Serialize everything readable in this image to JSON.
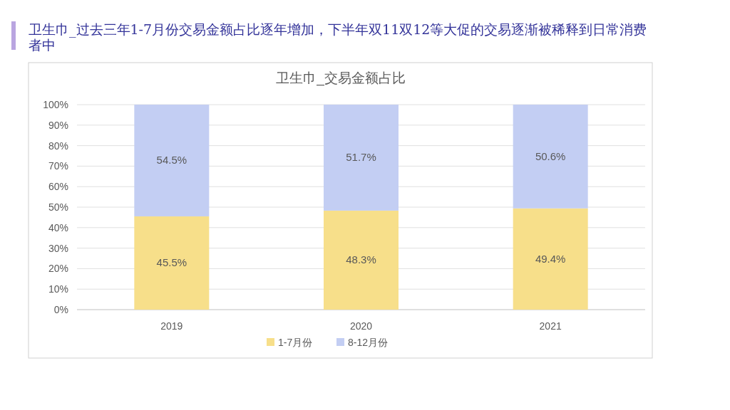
{
  "chart_data": {
    "type": "bar",
    "title": "卫生巾_过去三年1-7月份交易金额占比逐年增加，下半年双11双12等大促的交易逐渐被稀释到日常消费者中",
    "subtitle": "卫生巾_交易金额占比",
    "categories": [
      "2019",
      "2020",
      "2021"
    ],
    "series": [
      {
        "name": "1-7月份",
        "color": "#f7df8a",
        "values": [
          45.5,
          48.3,
          49.4
        ],
        "value_labels": [
          "45.5%",
          "48.3%",
          "49.4%"
        ]
      },
      {
        "name": "8-12月份",
        "color": "#c3cef3",
        "values": [
          54.5,
          51.7,
          50.6
        ],
        "value_labels": [
          "54.5%",
          "51.7%",
          "50.6%"
        ]
      }
    ],
    "stacked": true,
    "ylim": [
      0,
      100
    ],
    "yticks": [
      {
        "value": 0,
        "label": "0%"
      },
      {
        "value": 10,
        "label": "10%"
      },
      {
        "value": 20,
        "label": "20%"
      },
      {
        "value": 30,
        "label": "30%"
      },
      {
        "value": 40,
        "label": "40%"
      },
      {
        "value": 50,
        "label": "50%"
      },
      {
        "value": 60,
        "label": "60%"
      },
      {
        "value": 70,
        "label": "70%"
      },
      {
        "value": 80,
        "label": "80%"
      },
      {
        "value": 90,
        "label": "90%"
      },
      {
        "value": 100,
        "label": "100%"
      }
    ],
    "grid": "y",
    "legend": "bottom"
  }
}
